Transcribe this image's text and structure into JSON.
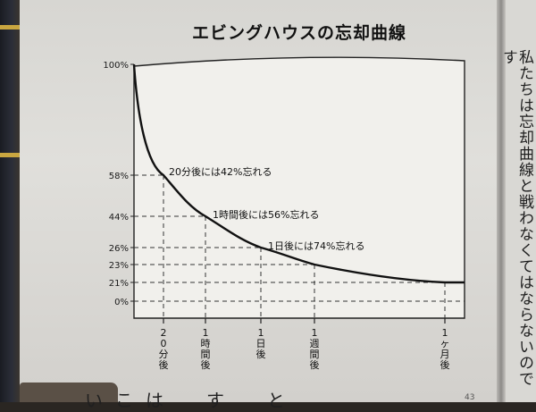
{
  "chart_data": {
    "type": "line",
    "title": "エビングハウスの忘却曲線",
    "xlabel": "",
    "ylabel": "",
    "y_ticks": [
      {
        "label": "100%",
        "value": 100
      },
      {
        "label": "58%",
        "value": 58
      },
      {
        "label": "44%",
        "value": 44
      },
      {
        "label": "26%",
        "value": 26
      },
      {
        "label": "23%",
        "value": 23
      },
      {
        "label": "21%",
        "value": 21
      },
      {
        "label": "0%",
        "value": 0
      }
    ],
    "x_ticks": [
      {
        "label": "20分後"
      },
      {
        "label": "1時間後"
      },
      {
        "label": "1日後"
      },
      {
        "label": "1週間後"
      },
      {
        "label": "1ヶ月後"
      }
    ],
    "points": [
      {
        "x": "0",
        "y": 100
      },
      {
        "x": "20分後",
        "y": 58
      },
      {
        "x": "1時間後",
        "y": 44
      },
      {
        "x": "1日後",
        "y": 26
      },
      {
        "x": "1週間後",
        "y": 23
      },
      {
        "x": "1ヶ月後",
        "y": 21
      }
    ],
    "annotations": [
      {
        "text": "20分後には42%忘れる",
        "at": "20分後"
      },
      {
        "text": "1時間後には56%忘れる",
        "at": "1時間後"
      },
      {
        "text": "1日後には74%忘れる",
        "at": "1日後"
      }
    ],
    "grid": "dashed guide lines at each marked point"
  },
  "page_text": {
    "right_column": "私たちは忘却曲線と戦わなくてはならないのです",
    "bottom_line": "いこは　す　と",
    "page_number": "43"
  },
  "colors": {
    "paper": "#dcdbd7",
    "ink": "#111111",
    "cover": "#2b2e38"
  }
}
